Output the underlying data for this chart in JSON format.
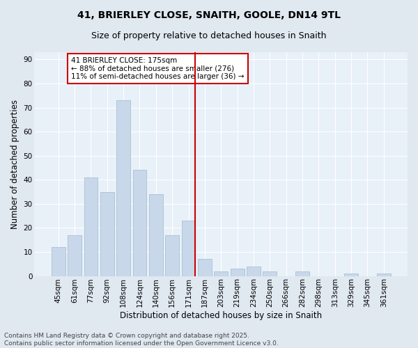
{
  "title": "41, BRIERLEY CLOSE, SNAITH, GOOLE, DN14 9TL",
  "subtitle": "Size of property relative to detached houses in Snaith",
  "xlabel": "Distribution of detached houses by size in Snaith",
  "ylabel": "Number of detached properties",
  "categories": [
    "45sqm",
    "61sqm",
    "77sqm",
    "92sqm",
    "108sqm",
    "124sqm",
    "140sqm",
    "156sqm",
    "171sqm",
    "187sqm",
    "203sqm",
    "219sqm",
    "234sqm",
    "250sqm",
    "266sqm",
    "282sqm",
    "298sqm",
    "313sqm",
    "329sqm",
    "345sqm",
    "361sqm"
  ],
  "values": [
    12,
    17,
    41,
    35,
    73,
    44,
    34,
    17,
    23,
    7,
    2,
    3,
    4,
    2,
    0,
    2,
    0,
    0,
    1,
    0,
    1
  ],
  "bar_color": "#c8d8ea",
  "bar_edgecolor": "#a0b8cc",
  "vline_color": "#cc0000",
  "annotation_text": "41 BRIERLEY CLOSE: 175sqm\n← 88% of detached houses are smaller (276)\n11% of semi-detached houses are larger (36) →",
  "annotation_box_facecolor": "#ffffff",
  "annotation_box_edgecolor": "#cc0000",
  "ylim": [
    0,
    93
  ],
  "yticks": [
    0,
    10,
    20,
    30,
    40,
    50,
    60,
    70,
    80,
    90
  ],
  "background_color": "#e0e8f0",
  "plot_background_color": "#e8f0f8",
  "grid_color": "#ffffff",
  "footer": "Contains HM Land Registry data © Crown copyright and database right 2025.\nContains public sector information licensed under the Open Government Licence v3.0.",
  "title_fontsize": 10,
  "subtitle_fontsize": 9,
  "axis_label_fontsize": 8.5,
  "tick_fontsize": 7.5,
  "annotation_fontsize": 7.5,
  "footer_fontsize": 6.5
}
